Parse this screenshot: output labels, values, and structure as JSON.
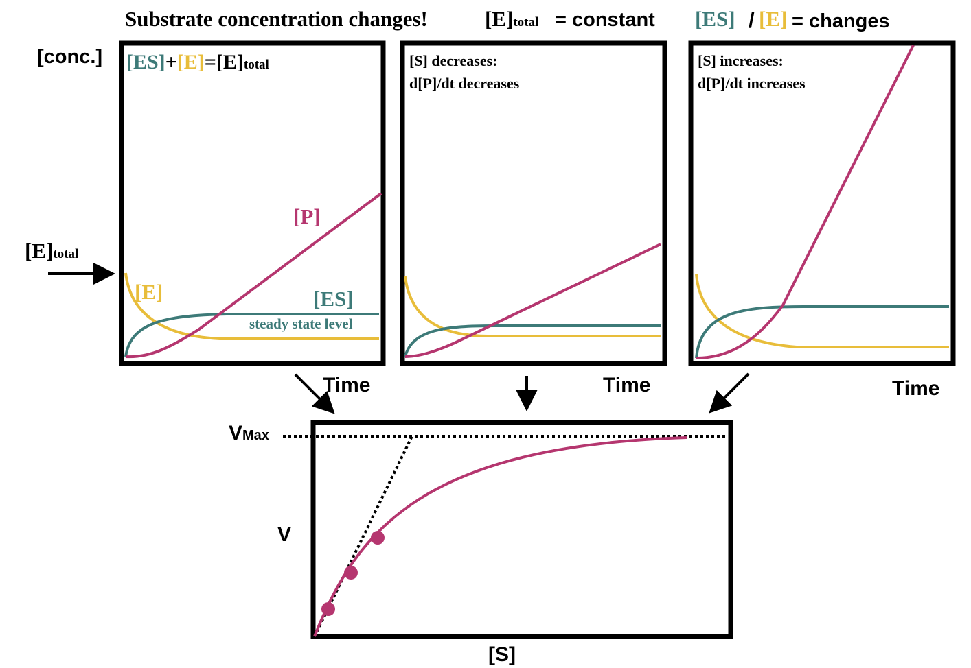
{
  "header": {
    "title": "Substrate concentration changes!",
    "e_base": "[E]",
    "e_sub": "total",
    "constant": "= constant",
    "es": "[ES]",
    "slash": "/",
    "e": "[E]",
    "changes": "= changes"
  },
  "y_label": "[conc.]",
  "e_total_marker": {
    "base": "[E]",
    "sub": "total"
  },
  "panel1": {
    "eq_es": "[ES]",
    "eq_plus": "+",
    "eq_e": "[E]",
    "eq_equals": "=",
    "eq_total_base": "[E]",
    "eq_total_sub": "total",
    "p": "[P]",
    "e": "[E]",
    "es": "[ES]",
    "steady": "steady state level",
    "x_label": "Time"
  },
  "panel2": {
    "note": [
      "[S] decreases:",
      "d[P]/dt decreases"
    ],
    "x_label": "Time"
  },
  "panel3": {
    "note": [
      "[S] increases:",
      "d[P]/dt increases"
    ],
    "x_label": "Time"
  },
  "bottom": {
    "vmax_base": "V",
    "vmax_sub": "Max",
    "y_label": "V",
    "x_label": "[S]"
  }
}
